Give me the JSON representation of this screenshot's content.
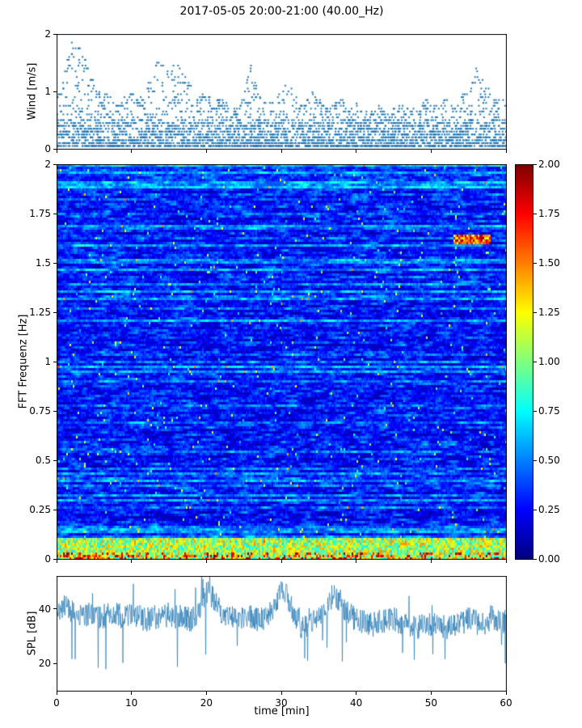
{
  "title": "2017-05-05 20:00-21:00 (40.00_Hz)",
  "xlabel": "time [min]",
  "x_ticks": [
    0,
    10,
    20,
    30,
    40,
    50,
    60
  ],
  "panels": {
    "wind": {
      "ylabel": "Wind [m/s]",
      "yticks": [
        0,
        1,
        2
      ],
      "ylim": [
        0,
        2
      ]
    },
    "spectrogram": {
      "ylabel": "FFT Frequenz [Hz]",
      "ytick_values": [
        0,
        0.25,
        0.5,
        0.75,
        1,
        1.25,
        1.5,
        1.75,
        2
      ],
      "ytick_labels": [
        "0",
        "0.25",
        "0.5",
        "0.75",
        "1",
        "1.25",
        "1.5",
        "1.75",
        "2"
      ],
      "ylim": [
        0,
        2
      ]
    },
    "spl": {
      "ylabel": "SPL [dB]",
      "yticks": [
        20,
        40
      ],
      "ylim": [
        10,
        52
      ]
    }
  },
  "colorbar": {
    "colormap": "jet",
    "vmin": 0,
    "vmax": 2,
    "tick_values": [
      0,
      0.25,
      0.5,
      0.75,
      1,
      1.25,
      1.5,
      1.75,
      2
    ],
    "tick_labels": [
      "0.00",
      "0.25",
      "0.50",
      "0.75",
      "1.00",
      "1.25",
      "1.50",
      "1.75",
      "2.00"
    ]
  },
  "chart_data": [
    {
      "type": "scatter",
      "name": "wind-speed",
      "ylabel": "Wind [m/s]",
      "xlim": [
        0,
        60
      ],
      "ylim": [
        0,
        2
      ],
      "marker_color": "#1f77b4",
      "quantization_mps": 0.05,
      "x_step_min": 1,
      "max_per_minute": [
        0.9,
        1.3,
        1.9,
        1.9,
        1.5,
        1.2,
        0.9,
        1.0,
        0.8,
        0.9,
        1.0,
        0.9,
        1.1,
        1.5,
        1.6,
        1.4,
        1.5,
        1.3,
        1.1,
        0.9,
        1.0,
        0.8,
        0.9,
        0.8,
        0.7,
        1.0,
        1.5,
        0.9,
        0.8,
        0.9,
        1.0,
        1.2,
        0.9,
        0.8,
        1.0,
        0.9,
        0.7,
        0.8,
        0.9,
        0.7,
        0.8,
        0.6,
        0.7,
        0.8,
        0.6,
        0.7,
        0.8,
        0.7,
        0.8,
        0.9,
        0.8,
        0.7,
        0.9,
        0.8,
        1.0,
        1.2,
        1.4,
        1.2,
        1.0,
        0.9,
        0.8
      ]
    },
    {
      "type": "heatmap",
      "name": "fft-spectrogram",
      "ylabel": "FFT Frequenz [Hz]",
      "xlim": [
        0,
        60
      ],
      "ylim": [
        0,
        2
      ],
      "colormap": "jet",
      "vmin": 0,
      "vmax": 2,
      "background_level": 0.3,
      "features": [
        {
          "desc": "high-energy yellow/orange/red band at lowest frequencies",
          "freq_range": [
            0,
            0.1
          ],
          "time_range": [
            0,
            60
          ],
          "level_range": [
            0.7,
            2.0
          ]
        },
        {
          "desc": "orange-red streak near 1.62 Hz late in the hour",
          "freq_range": [
            1.6,
            1.65
          ],
          "time_range": [
            53,
            58
          ],
          "level_range": [
            1.2,
            2.0
          ]
        },
        {
          "desc": "horizontal cyan streaks scattered over blue background",
          "freq_range": [
            0,
            2
          ],
          "time_range": [
            0,
            60
          ],
          "level_range": [
            0.6,
            1.2
          ]
        }
      ]
    },
    {
      "type": "line",
      "name": "spl",
      "ylabel": "SPL [dB]",
      "xlim": [
        0,
        60
      ],
      "ylim": [
        10,
        52
      ],
      "line_color": "#1f77b4",
      "x_step_min": 1,
      "noise_band_db": 9,
      "mean_per_minute": [
        40,
        41,
        39,
        38,
        38,
        37,
        37,
        38,
        38,
        37,
        38,
        37,
        36,
        37,
        37,
        38,
        37,
        37,
        36,
        39,
        46,
        44,
        39,
        37,
        36,
        36,
        37,
        36,
        37,
        39,
        49,
        43,
        35,
        33,
        35,
        36,
        38,
        46,
        42,
        38,
        36,
        35,
        34,
        35,
        36,
        36,
        35,
        34,
        33,
        34,
        34,
        35,
        33,
        34,
        35,
        36,
        35,
        34,
        37,
        36,
        35
      ]
    }
  ]
}
